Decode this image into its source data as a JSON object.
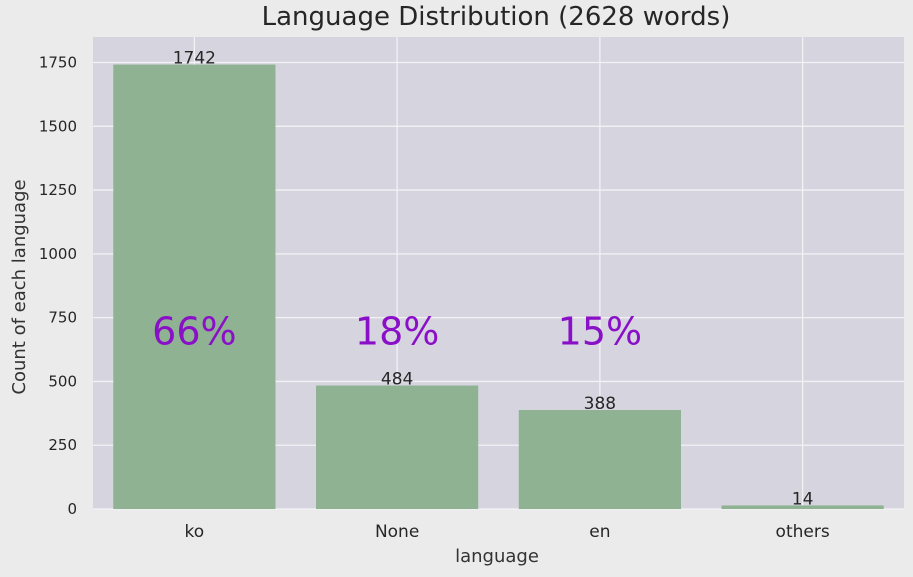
{
  "chart_data": {
    "type": "bar",
    "title": "Language Distribution (2628 words)",
    "xlabel": "language",
    "ylabel": "Count of each language",
    "categories": [
      "ko",
      "None",
      "en",
      "others"
    ],
    "values": [
      1742,
      484,
      388,
      14
    ],
    "value_labels": [
      "1742",
      "484",
      "388",
      "14"
    ],
    "percent_labels": [
      "66%",
      "18%",
      "15%",
      ""
    ],
    "ylim": [
      0,
      1850
    ],
    "yticks": [
      0,
      250,
      500,
      750,
      1000,
      1250,
      1500,
      1750
    ],
    "ytick_labels": [
      "0",
      "250",
      "500",
      "750",
      "1000",
      "1250",
      "1500",
      "1750"
    ],
    "percent_label_y": 700,
    "grid": true,
    "colors": {
      "bar": "#8fb292",
      "plot_bg": "#d6d5df",
      "grid": "#f2f2f5",
      "percent_text": "#8a10c8"
    }
  }
}
